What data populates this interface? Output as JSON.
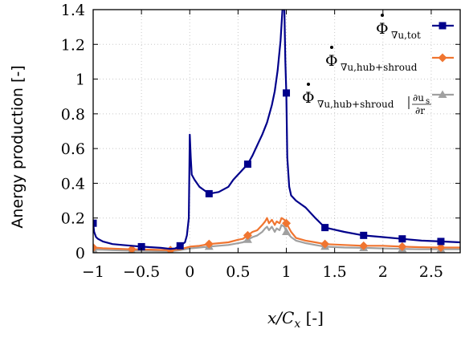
{
  "chart_data": {
    "type": "line",
    "xlabel": "x/C_x [-]",
    "ylabel": "Anergy production [-]",
    "xlim": [
      -1,
      2.8
    ],
    "ylim": [
      0,
      1.4
    ],
    "xticks": [
      -1,
      -0.5,
      0,
      0.5,
      1,
      1.5,
      2,
      2.5
    ],
    "xtick_labels": [
      "−1",
      "−0.5",
      "0",
      "0.5",
      "1",
      "1.5",
      "2",
      "2.5"
    ],
    "yticks": [
      0,
      0.2,
      0.4,
      0.6,
      0.8,
      1,
      1.2,
      1.4
    ],
    "ytick_labels": [
      "0",
      "0.2",
      "0.4",
      "0.6",
      "0.8",
      "1",
      "1.2",
      "1.4"
    ],
    "grid": true,
    "legend_position": "top-right",
    "legend": [
      {
        "symbol": "Φ",
        "sub": "∇u,tot"
      },
      {
        "symbol": "Φ",
        "sub": "∇u,hub+shroud"
      },
      {
        "symbol": "Φ",
        "sub": "∇u,hub+shroud",
        "frac_num": "∂u",
        "frac_num_sub": "s",
        "frac_den": "∂r"
      }
    ],
    "series": [
      {
        "color": "#00008b",
        "marker": "square",
        "x": [
          -1.0,
          -0.99,
          -0.97,
          -0.95,
          -0.9,
          -0.8,
          -0.7,
          -0.6,
          -0.5,
          -0.4,
          -0.3,
          -0.2,
          -0.15,
          -0.1,
          -0.05,
          -0.03,
          -0.01,
          0.0,
          0.01,
          0.02,
          0.05,
          0.1,
          0.15,
          0.2,
          0.3,
          0.4,
          0.45,
          0.5,
          0.55,
          0.6,
          0.65,
          0.7,
          0.75,
          0.8,
          0.85,
          0.88,
          0.91,
          0.94,
          0.96,
          0.97,
          0.98,
          0.99,
          1.0,
          1.01,
          1.03,
          1.05,
          1.1,
          1.2,
          1.3,
          1.4,
          1.6,
          1.8,
          2.0,
          2.2,
          2.4,
          2.6,
          2.8
        ],
        "y": [
          0.17,
          0.12,
          0.09,
          0.08,
          0.065,
          0.05,
          0.045,
          0.04,
          0.035,
          0.032,
          0.028,
          0.022,
          0.025,
          0.04,
          0.06,
          0.1,
          0.2,
          0.68,
          0.55,
          0.45,
          0.42,
          0.38,
          0.36,
          0.34,
          0.35,
          0.38,
          0.42,
          0.45,
          0.48,
          0.51,
          0.56,
          0.62,
          0.68,
          0.75,
          0.85,
          0.93,
          1.05,
          1.22,
          1.4,
          1.4,
          1.4,
          1.1,
          0.92,
          0.55,
          0.38,
          0.33,
          0.3,
          0.26,
          0.2,
          0.145,
          0.12,
          0.1,
          0.09,
          0.08,
          0.07,
          0.065,
          0.06
        ],
        "marker_x": [
          -1.0,
          -0.5,
          -0.1,
          0.2,
          0.6,
          1.0,
          1.4,
          1.8,
          2.2,
          2.6
        ]
      },
      {
        "color": "#f07530",
        "marker": "diamond",
        "x": [
          -1.0,
          -0.95,
          -0.9,
          -0.8,
          -0.6,
          -0.4,
          -0.2,
          -0.1,
          0.0,
          0.1,
          0.2,
          0.3,
          0.4,
          0.5,
          0.55,
          0.6,
          0.65,
          0.7,
          0.75,
          0.78,
          0.8,
          0.82,
          0.85,
          0.88,
          0.9,
          0.93,
          0.95,
          0.98,
          1.0,
          1.05,
          1.1,
          1.2,
          1.3,
          1.4,
          1.6,
          1.8,
          2.0,
          2.2,
          2.4,
          2.6,
          2.8
        ],
        "y": [
          0.03,
          0.028,
          0.026,
          0.024,
          0.02,
          0.018,
          0.015,
          0.02,
          0.035,
          0.04,
          0.05,
          0.055,
          0.06,
          0.075,
          0.08,
          0.1,
          0.12,
          0.13,
          0.16,
          0.18,
          0.2,
          0.17,
          0.19,
          0.16,
          0.18,
          0.17,
          0.2,
          0.19,
          0.17,
          0.12,
          0.085,
          0.07,
          0.06,
          0.05,
          0.045,
          0.04,
          0.04,
          0.035,
          0.032,
          0.03,
          0.03
        ],
        "marker_x": [
          -1.0,
          -0.6,
          -0.2,
          0.2,
          0.6,
          1.0,
          1.4,
          1.8,
          2.2,
          2.6
        ]
      },
      {
        "color": "#a0a0a0",
        "marker": "triangle",
        "x": [
          -1.0,
          -0.95,
          -0.9,
          -0.8,
          -0.6,
          -0.4,
          -0.2,
          -0.1,
          0.0,
          0.1,
          0.2,
          0.3,
          0.4,
          0.5,
          0.55,
          0.6,
          0.65,
          0.7,
          0.75,
          0.78,
          0.8,
          0.82,
          0.85,
          0.88,
          0.9,
          0.93,
          0.95,
          0.98,
          1.0,
          1.05,
          1.1,
          1.2,
          1.3,
          1.4,
          1.6,
          1.8,
          2.0,
          2.2,
          2.4,
          2.6,
          2.8
        ],
        "y": [
          0.02,
          0.018,
          0.017,
          0.015,
          0.012,
          0.01,
          0.008,
          0.015,
          0.025,
          0.03,
          0.035,
          0.04,
          0.045,
          0.055,
          0.06,
          0.075,
          0.09,
          0.1,
          0.12,
          0.14,
          0.15,
          0.13,
          0.15,
          0.12,
          0.14,
          0.13,
          0.16,
          0.15,
          0.12,
          0.09,
          0.07,
          0.055,
          0.045,
          0.035,
          0.03,
          0.028,
          0.025,
          0.022,
          0.02,
          0.02,
          0.02
        ],
        "marker_x": [
          -1.0,
          -0.6,
          -0.2,
          0.2,
          0.6,
          1.0,
          1.4,
          1.8,
          2.2,
          2.6
        ]
      }
    ]
  }
}
